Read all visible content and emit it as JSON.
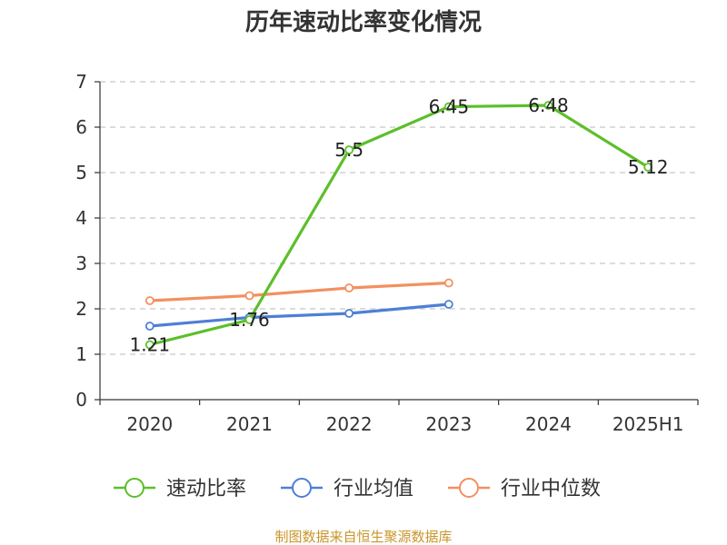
{
  "chart_data": {
    "type": "line",
    "title": "历年速动比率变化情况",
    "categories": [
      "2020",
      "2021",
      "2022",
      "2023",
      "2024",
      "2025H1"
    ],
    "ylim": [
      0,
      7
    ],
    "yticks": [
      "0",
      "1",
      "2",
      "3",
      "4",
      "5",
      "6",
      "7"
    ],
    "grid": true,
    "legend_position": "bottom",
    "series": [
      {
        "name": "速动比率",
        "color": "#5cbf2a",
        "values": [
          1.21,
          1.76,
          5.5,
          6.45,
          6.48,
          5.12
        ],
        "labels": [
          "1.21",
          "1.76",
          "5.5",
          "6.45",
          "6.48",
          "5.12"
        ]
      },
      {
        "name": "行业均值",
        "color": "#4e7fd6",
        "values": [
          1.62,
          1.81,
          1.9,
          2.1,
          null,
          null
        ]
      },
      {
        "name": "行业中位数",
        "color": "#f39060",
        "values": [
          2.18,
          2.29,
          2.46,
          2.57,
          null,
          null
        ]
      }
    ]
  },
  "source": "制图数据来自恒生聚源数据库"
}
